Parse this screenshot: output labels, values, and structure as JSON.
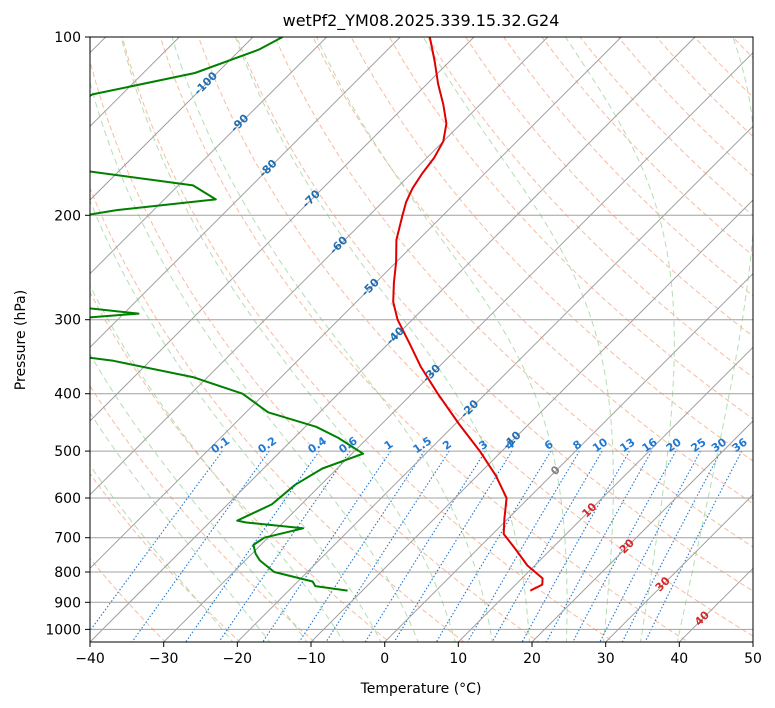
{
  "chart_data": {
    "type": "line",
    "diagram": "skew-t log-p",
    "title": "wetPf2_YM08.2025.339.15.32.G24",
    "xlabel": "Temperature (°C)",
    "ylabel": "Pressure (hPa)",
    "xlim": [
      -40,
      50
    ],
    "ylim_hpa": [
      1050,
      100
    ],
    "y_scale": "log",
    "grid": true,
    "x_ticks": [
      -40,
      -30,
      -20,
      -10,
      0,
      10,
      20,
      30,
      40,
      50
    ],
    "y_ticks": [
      100,
      200,
      300,
      400,
      500,
      600,
      700,
      800,
      900,
      1000
    ],
    "colors": {
      "temperature": "#e00000",
      "dewpoint": "#008000",
      "isotherm": "#a0a0a0",
      "dry_adiabat": "#f4a582",
      "moist_adiabat": "#a6d8a6",
      "mixing_ratio": "#1f78d1",
      "isotherm_label": "#1f6db0",
      "isotherm_label_warm": "#d62728"
    },
    "series": [
      {
        "points": [
          {
            "p": 100,
            "t": -76.0
          },
          {
            "p": 110,
            "t": -72.0
          },
          {
            "p": 120,
            "t": -68.5
          },
          {
            "p": 130,
            "t": -65.0
          },
          {
            "p": 140,
            "t": -62.0
          },
          {
            "p": 150,
            "t": -60.0
          },
          {
            "p": 160,
            "t": -59.0
          },
          {
            "p": 170,
            "t": -58.5
          },
          {
            "p": 180,
            "t": -57.8
          },
          {
            "p": 190,
            "t": -56.8
          },
          {
            "p": 200,
            "t": -55.5
          },
          {
            "p": 220,
            "t": -53.0
          },
          {
            "p": 240,
            "t": -50.0
          },
          {
            "p": 260,
            "t": -47.5
          },
          {
            "p": 280,
            "t": -45.0
          },
          {
            "p": 300,
            "t": -42.0
          },
          {
            "p": 330,
            "t": -37.0
          },
          {
            "p": 360,
            "t": -32.5
          },
          {
            "p": 400,
            "t": -26.5
          },
          {
            "p": 450,
            "t": -19.5
          },
          {
            "p": 500,
            "t": -13.0
          },
          {
            "p": 550,
            "t": -7.5
          },
          {
            "p": 600,
            "t": -3.0
          },
          {
            "p": 650,
            "t": -0.5
          },
          {
            "p": 690,
            "t": 1.5
          },
          {
            "p": 730,
            "t": 5.0
          },
          {
            "p": 780,
            "t": 9.0
          },
          {
            "p": 820,
            "t": 12.8
          },
          {
            "p": 840,
            "t": 13.6
          },
          {
            "p": 860,
            "t": 12.8
          }
        ]
      },
      {
        "points": [
          {
            "p": 100,
            "t": -96.0
          },
          {
            "p": 105,
            "t": -97.5
          },
          {
            "p": 115,
            "t": -103.0
          },
          {
            "p": 125,
            "t": -114.0
          },
          {
            "p": 130,
            "t": -115.0
          },
          {
            "p": 140,
            "t": -114.5
          },
          {
            "p": 155,
            "t": -113.5
          },
          {
            "p": 162,
            "t": -115.5
          },
          {
            "p": 168,
            "t": -105.0
          },
          {
            "p": 178,
            "t": -88.0
          },
          {
            "p": 188,
            "t": -83.0
          },
          {
            "p": 196,
            "t": -95.0
          },
          {
            "p": 205,
            "t": -103.0
          },
          {
            "p": 220,
            "t": -101.0
          },
          {
            "p": 235,
            "t": -98.0
          },
          {
            "p": 255,
            "t": -96.0
          },
          {
            "p": 272,
            "t": -99.0
          },
          {
            "p": 285,
            "t": -88.0
          },
          {
            "p": 293,
            "t": -78.0
          },
          {
            "p": 302,
            "t": -90.5
          },
          {
            "p": 320,
            "t": -90.5
          },
          {
            "p": 335,
            "t": -90.0
          },
          {
            "p": 352,
            "t": -75.0
          },
          {
            "p": 375,
            "t": -62.0
          },
          {
            "p": 400,
            "t": -53.0
          },
          {
            "p": 430,
            "t": -47.0
          },
          {
            "p": 455,
            "t": -38.5
          },
          {
            "p": 475,
            "t": -34.0
          },
          {
            "p": 505,
            "t": -28.5
          },
          {
            "p": 535,
            "t": -32.0
          },
          {
            "p": 570,
            "t": -33.5
          },
          {
            "p": 615,
            "t": -34.0
          },
          {
            "p": 655,
            "t": -36.5
          },
          {
            "p": 660,
            "t": -35.0
          },
          {
            "p": 675,
            "t": -26.5
          },
          {
            "p": 700,
            "t": -30.5
          },
          {
            "p": 720,
            "t": -31.0
          },
          {
            "p": 745,
            "t": -29.5
          },
          {
            "p": 765,
            "t": -28.0
          },
          {
            "p": 800,
            "t": -24.5
          },
          {
            "p": 830,
            "t": -18.0
          },
          {
            "p": 845,
            "t": -17.0
          },
          {
            "p": 860,
            "t": -12.0
          }
        ]
      }
    ],
    "isotherm_labels": [
      {
        "text": "-100",
        "t": -100,
        "p": 120
      },
      {
        "text": "-90",
        "t": -90,
        "p": 140
      },
      {
        "text": "-80",
        "t": -80,
        "p": 167
      },
      {
        "text": "-70",
        "t": -70,
        "p": 188
      },
      {
        "text": "-60",
        "t": -60,
        "p": 225
      },
      {
        "text": "-50",
        "t": -50,
        "p": 265
      },
      {
        "text": "-40",
        "t": -40,
        "p": 320
      },
      {
        "text": "-30",
        "t": -30,
        "p": 370
      },
      {
        "text": "-20",
        "t": -20,
        "p": 425
      },
      {
        "text": "-10",
        "t": -10,
        "p": 480
      },
      {
        "text": "0",
        "t": 0,
        "p": 540
      },
      {
        "text": "10",
        "t": 10,
        "p": 630
      },
      {
        "text": "20",
        "t": 20,
        "p": 725
      },
      {
        "text": "30",
        "t": 30,
        "p": 840
      },
      {
        "text": "40",
        "t": 40,
        "p": 960
      }
    ],
    "mixing_ratio_labels": [
      "0.1",
      "0.2",
      "0.4",
      "0.6",
      "1",
      "1.5",
      "2",
      "3",
      "4",
      "6",
      "8",
      "10",
      "13",
      "16",
      "20",
      "25",
      "30",
      "36"
    ],
    "mixing_ratio_label_pressure": 500
  }
}
